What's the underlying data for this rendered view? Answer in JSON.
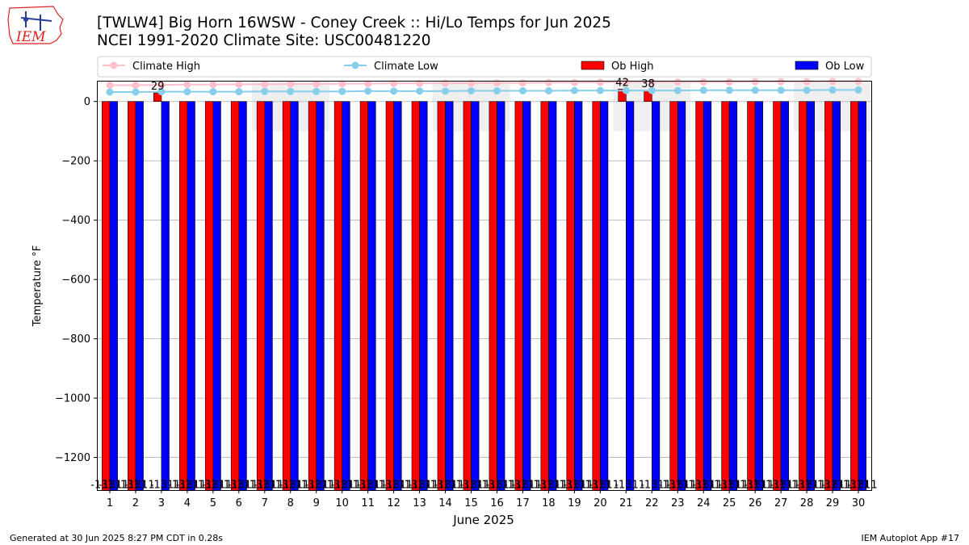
{
  "header": {
    "title": "[TWLW4] Big Horn 16WSW - Coney Creek :: Hi/Lo Temps for Jun 2025",
    "subtitle": "NCEI 1991-2020 Climate Site: USC00481220",
    "logo_text": "IEM"
  },
  "footer": {
    "generated": "Generated at 30 Jun 2025 8:27 PM CDT in 0.28s",
    "app": "IEM Autoplot App #17"
  },
  "colors": {
    "ob_high": "#ff0000",
    "ob_low": "#0000ff",
    "climate_high": "#ffc0cb",
    "climate_low": "#87ceeb",
    "weekend_band": "#efefef"
  },
  "chart_data": {
    "type": "bar",
    "xlabel": "June 2025",
    "ylabel": "Temperature °F",
    "ylim": [
      -1310,
      70
    ],
    "yticks": [
      0,
      -200,
      -400,
      -600,
      -800,
      -1000,
      -1200
    ],
    "grid": true,
    "legend_position": "top",
    "categories": [
      "1",
      "2",
      "3",
      "4",
      "5",
      "6",
      "7",
      "8",
      "9",
      "10",
      "11",
      "12",
      "13",
      "14",
      "15",
      "16",
      "17",
      "18",
      "19",
      "20",
      "21",
      "22",
      "23",
      "24",
      "25",
      "26",
      "27",
      "28",
      "29",
      "30"
    ],
    "series": [
      {
        "name": "Ob High",
        "kind": "bar",
        "values": [
          -1311,
          -1311,
          29,
          -1311,
          -1311,
          -1311,
          -1311,
          -1311,
          -1311,
          -1311,
          -1311,
          -1311,
          -1311,
          -1311,
          -1311,
          -1311,
          -1311,
          -1311,
          -1311,
          -1311,
          42,
          38,
          -1311,
          -1311,
          -1311,
          -1311,
          -1311,
          -1311,
          -1311,
          -1311
        ]
      },
      {
        "name": "Ob Low",
        "kind": "bar",
        "values": [
          -1311,
          -1311,
          -1311,
          -1311,
          -1311,
          -1311,
          -1311,
          -1311,
          -1311,
          -1311,
          -1311,
          -1311,
          -1311,
          -1311,
          -1311,
          -1311,
          -1311,
          -1311,
          -1311,
          -1311,
          -1311,
          -1311,
          -1311,
          -1311,
          -1311,
          -1311,
          -1311,
          -1311,
          -1311,
          -1311
        ]
      },
      {
        "name": "Climate High",
        "kind": "line",
        "values": [
          55,
          55,
          56,
          57,
          57,
          58,
          58,
          59,
          59,
          60,
          60,
          61,
          61,
          62,
          62,
          63,
          63,
          64,
          64,
          65,
          65,
          65,
          66,
          66,
          66,
          67,
          67,
          67,
          68,
          68
        ]
      },
      {
        "name": "Climate Low",
        "kind": "line",
        "values": [
          32,
          32,
          33,
          33,
          33,
          33,
          34,
          34,
          34,
          34,
          35,
          35,
          35,
          35,
          36,
          36,
          36,
          36,
          37,
          37,
          37,
          37,
          37,
          38,
          38,
          38,
          38,
          38,
          39,
          39
        ]
      }
    ],
    "bar_labels": {
      "high": [
        "-1311",
        "-1311",
        "29",
        "-1311",
        "-1311",
        "-1311",
        "-1311",
        "-1311",
        "-1311",
        "-1311",
        "-1311",
        "-1311",
        "-1311",
        "-1311",
        "-1311",
        "-1311",
        "-1311",
        "-1311",
        "-1311",
        "-1311",
        "42",
        "38",
        "-1311",
        "-1311",
        "-1311",
        "-1311",
        "-1311",
        "-1311",
        "-1311",
        "-1311"
      ],
      "low": [
        "-1311",
        "-1311",
        "-1311",
        "-1311",
        "-1311",
        "-1311",
        "-1311",
        "-1311",
        "-1311",
        "-1311",
        "-1311",
        "-1311",
        "-1311",
        "-1311",
        "-1311",
        "-1311",
        "-1311",
        "-1311",
        "-1311",
        "-1311",
        "-1311",
        "-1311",
        "-1311",
        "-1311",
        "-1311",
        "-1311",
        "-1311",
        "-1311",
        "-1311",
        "-1311"
      ]
    },
    "weekend_bands": [
      [
        6,
        8
      ],
      [
        13,
        15
      ],
      [
        20,
        22
      ],
      [
        27,
        29
      ]
    ]
  }
}
